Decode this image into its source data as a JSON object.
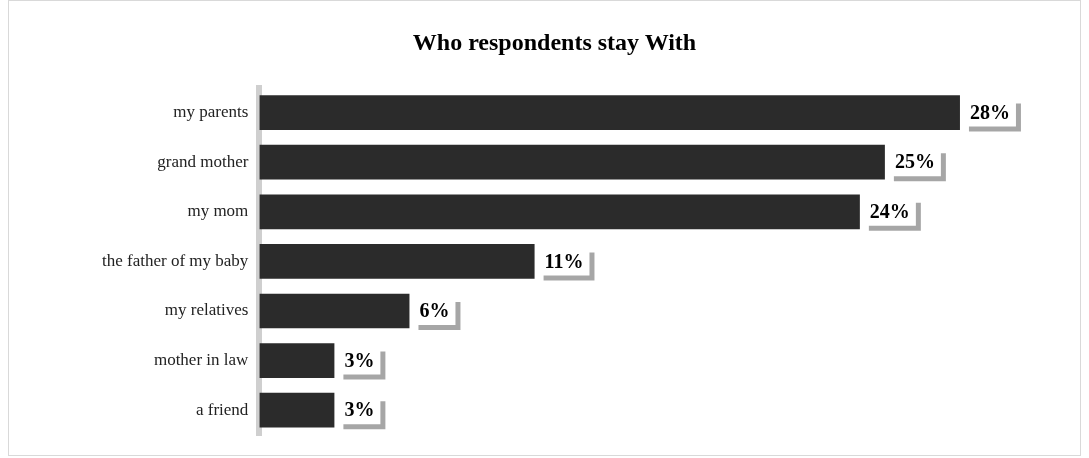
{
  "chart_data": {
    "type": "bar",
    "title": "Who respondents stay With",
    "orientation": "horizontal",
    "categories": [
      "my parents",
      "grand mother",
      "my mom",
      "the father of my baby",
      "my relatives",
      "mother in law",
      "a friend"
    ],
    "values": [
      28,
      25,
      24,
      11,
      6,
      3,
      3
    ],
    "value_labels": [
      "28%",
      "25%",
      "24%",
      "11%",
      "6%",
      "3%",
      "3%"
    ],
    "color": "#2b2b2b"
  }
}
